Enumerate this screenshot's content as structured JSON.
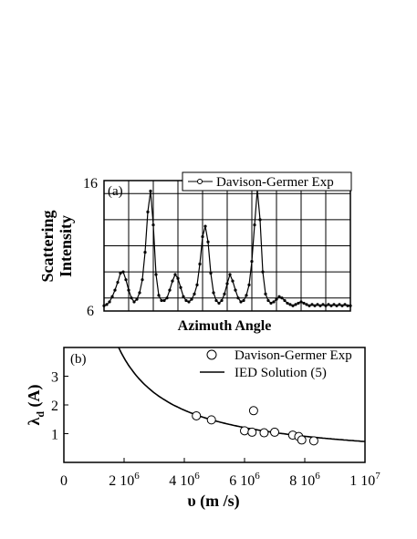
{
  "chart_data": [
    {
      "panel": "(a)",
      "type": "line",
      "xlabel": "Azimuth Angle",
      "ylabel": "Scattering Intensity",
      "ylabel_lines": [
        "Scattering",
        "Intensity"
      ],
      "yticks": [
        "16",
        "6"
      ],
      "ylim": [
        6,
        16
      ],
      "grid": true,
      "legend_placement": "top-right",
      "series": [
        {
          "name": "Davison-Germer Exp",
          "marker": "dot",
          "x": [
            0,
            4,
            8,
            12,
            16,
            20,
            24,
            28,
            32,
            36,
            40,
            44,
            48,
            52,
            56,
            60,
            64,
            68,
            72,
            76,
            80,
            84,
            88,
            92,
            96,
            100,
            104,
            108,
            112,
            116,
            120,
            124,
            128,
            132,
            136,
            140,
            144,
            148,
            152,
            156,
            160,
            164,
            168,
            172,
            176,
            180,
            184,
            188,
            192,
            196,
            200,
            204,
            208,
            212,
            216,
            220,
            224,
            228,
            232,
            236,
            240,
            244,
            248,
            252,
            256,
            260,
            264,
            268,
            272,
            276,
            280,
            284,
            288,
            292,
            296,
            300,
            304,
            308,
            312,
            316,
            320,
            324,
            328,
            332,
            336,
            340,
            344,
            348,
            352,
            356,
            360
          ],
          "y": [
            6.4,
            6.5,
            6.7,
            7.1,
            7.6,
            8.2,
            8.9,
            9.0,
            8.4,
            7.6,
            7.0,
            6.7,
            6.9,
            7.4,
            8.4,
            10.5,
            13.6,
            15.2,
            12.6,
            8.8,
            7.2,
            6.8,
            6.8,
            7.0,
            7.6,
            8.3,
            8.8,
            8.5,
            7.8,
            7.1,
            6.8,
            6.7,
            6.9,
            7.3,
            8.0,
            9.6,
            11.7,
            12.5,
            11.3,
            8.9,
            7.4,
            6.8,
            6.6,
            6.8,
            7.3,
            8.1,
            8.8,
            8.3,
            7.6,
            7.0,
            6.7,
            6.8,
            7.2,
            8.0,
            9.8,
            12.6,
            15.3,
            13.0,
            9.0,
            7.3,
            6.8,
            6.6,
            6.7,
            6.9,
            7.1,
            7.0,
            6.8,
            6.6,
            6.5,
            6.4,
            6.5,
            6.6,
            6.7,
            6.6,
            6.5,
            6.4,
            6.5,
            6.4,
            6.5,
            6.4,
            6.5,
            6.4,
            6.5,
            6.4,
            6.5,
            6.4,
            6.5,
            6.4,
            6.5,
            6.4,
            6.4
          ]
        }
      ]
    },
    {
      "panel": "(b)",
      "type": "scatter",
      "xlabel": "υ (m /s)",
      "ylabel": "λd (A)",
      "ylabel_main": "λ",
      "ylabel_sub": "d",
      "ylabel_rest": " (A)",
      "xlim": [
        0,
        10000000
      ],
      "ylim": [
        0,
        4
      ],
      "yticks": [
        1,
        2,
        3
      ],
      "xticks": [
        {
          "value": 0,
          "base": "0",
          "exp": ""
        },
        {
          "value": 2000000,
          "base": "2 10",
          "exp": "6"
        },
        {
          "value": 4000000,
          "base": "4 10",
          "exp": "6"
        },
        {
          "value": 6000000,
          "base": "6 10",
          "exp": "6"
        },
        {
          "value": 8000000,
          "base": "8 10",
          "exp": "6"
        },
        {
          "value": 10000000,
          "base": "1 10",
          "exp": "7"
        }
      ],
      "legend_placement": "top-right",
      "series": [
        {
          "name": "Davison-Germer Exp",
          "marker": "open-circle",
          "x": [
            4400000,
            4900000,
            6000000,
            6250000,
            6300000,
            6650000,
            7000000,
            7600000,
            7800000,
            7900000,
            8300000
          ],
          "y": [
            1.62,
            1.48,
            1.1,
            1.05,
            1.8,
            1.03,
            1.05,
            0.95,
            0.9,
            0.78,
            0.75
          ]
        },
        {
          "name": "IED Solution (5)",
          "marker": "line",
          "formula_constant": 7.27
        }
      ]
    }
  ]
}
